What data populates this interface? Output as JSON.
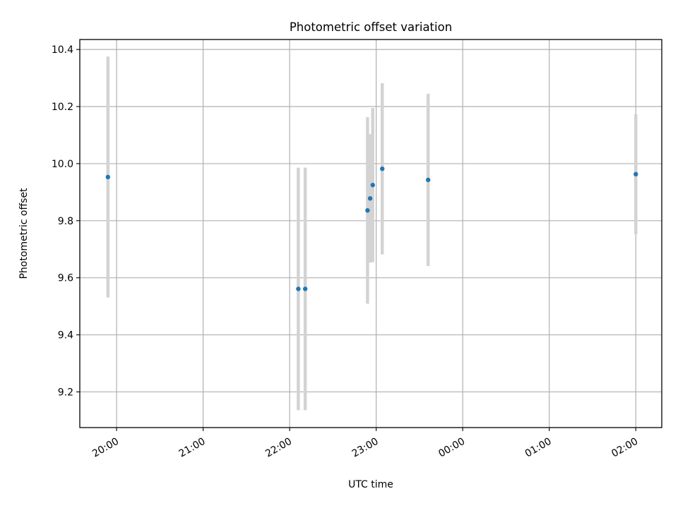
{
  "chart_data": {
    "type": "scatter",
    "title": "Photometric offset variation",
    "xlabel": "UTC time",
    "ylabel": "Photometric offset",
    "x_tick_labels": [
      "20:00",
      "21:00",
      "22:00",
      "23:00",
      "00:00",
      "01:00",
      "02:00"
    ],
    "x_tick_hours": [
      20,
      21,
      22,
      23,
      24,
      25,
      26
    ],
    "xlim_hours": [
      19.575,
      26.3
    ],
    "y_ticks": [
      9.2,
      9.4,
      9.6,
      9.8,
      10.0,
      10.2,
      10.4
    ],
    "y_tick_labels": [
      "9.2",
      "9.4",
      "9.6",
      "9.8",
      "10.0",
      "10.2",
      "10.4"
    ],
    "ylim": [
      9.075,
      10.435
    ],
    "grid": true,
    "series": [
      {
        "name": "offset",
        "color": "#1f77b4",
        "errorbar_color": "#d3d3d3",
        "points": [
          {
            "hour": 19.9,
            "y": 9.953,
            "err": 0.422
          },
          {
            "hour": 22.1,
            "y": 9.561,
            "err": 0.425
          },
          {
            "hour": 22.18,
            "y": 9.561,
            "err": 0.425
          },
          {
            "hour": 22.9,
            "y": 9.836,
            "err": 0.327
          },
          {
            "hour": 22.93,
            "y": 9.878,
            "err": 0.225
          },
          {
            "hour": 22.96,
            "y": 9.925,
            "err": 0.27
          },
          {
            "hour": 23.07,
            "y": 9.982,
            "err": 0.3
          },
          {
            "hour": 23.6,
            "y": 9.943,
            "err": 0.302
          },
          {
            "hour": 26.0,
            "y": 9.963,
            "err": 0.21
          }
        ]
      }
    ]
  }
}
